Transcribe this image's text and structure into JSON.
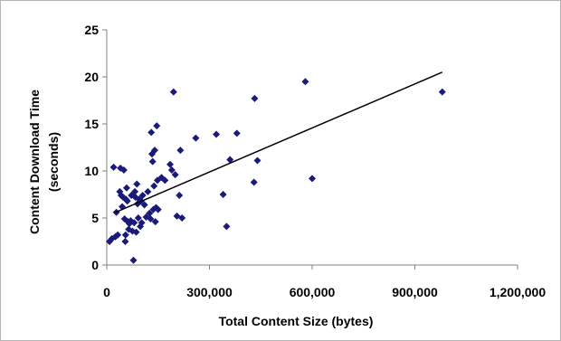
{
  "chart_data": {
    "type": "scatter",
    "xlabel": "Total Content Size (bytes)",
    "ylabel_line1": "Content Download Time",
    "ylabel_line2": "(seconds)",
    "xlim": [
      0,
      1200000
    ],
    "ylim": [
      0,
      25
    ],
    "x_ticks": [
      0,
      300000,
      600000,
      900000,
      1200000
    ],
    "x_tick_labels": [
      "0",
      "300,000",
      "600,000",
      "900,000",
      "1,200,000"
    ],
    "y_ticks": [
      0,
      5,
      10,
      15,
      20,
      25
    ],
    "y_tick_labels": [
      "0",
      "5",
      "10",
      "15",
      "20",
      "25"
    ],
    "grid": false,
    "legend": false,
    "marker": "diamond",
    "colors": {
      "marker": "#1a1a7a",
      "trendline": "#000000",
      "axes": "#808080"
    },
    "series": [
      {
        "points": [
          [
            8000,
            2.5
          ],
          [
            15000,
            2.8
          ],
          [
            20000,
            10.4
          ],
          [
            25000,
            3.0
          ],
          [
            28000,
            5.6
          ],
          [
            32000,
            3.2
          ],
          [
            38000,
            7.8
          ],
          [
            40000,
            10.3
          ],
          [
            42000,
            7.4
          ],
          [
            45000,
            6.2
          ],
          [
            48000,
            7.2
          ],
          [
            50000,
            10.1
          ],
          [
            52000,
            4.9
          ],
          [
            54000,
            2.5
          ],
          [
            55000,
            3.2
          ],
          [
            56000,
            7.0
          ],
          [
            58000,
            8.2
          ],
          [
            60000,
            6.8
          ],
          [
            62000,
            4.6
          ],
          [
            64000,
            3.8
          ],
          [
            66000,
            4.4
          ],
          [
            70000,
            4.7
          ],
          [
            72000,
            7.4
          ],
          [
            75000,
            3.6
          ],
          [
            78000,
            0.5
          ],
          [
            80000,
            4.5
          ],
          [
            82000,
            7.8
          ],
          [
            84000,
            7.2
          ],
          [
            86000,
            3.5
          ],
          [
            88000,
            8.6
          ],
          [
            90000,
            6.5
          ],
          [
            92000,
            5.0
          ],
          [
            95000,
            7.0
          ],
          [
            98000,
            4.1
          ],
          [
            100000,
            6.8
          ],
          [
            102000,
            4.5
          ],
          [
            105000,
            7.4
          ],
          [
            110000,
            6.4
          ],
          [
            115000,
            5.1
          ],
          [
            120000,
            7.8
          ],
          [
            125000,
            5.5
          ],
          [
            128000,
            4.9
          ],
          [
            130000,
            14.1
          ],
          [
            132000,
            11.8
          ],
          [
            134000,
            11.0
          ],
          [
            136000,
            5.9
          ],
          [
            138000,
            8.4
          ],
          [
            140000,
            12.2
          ],
          [
            142000,
            4.6
          ],
          [
            144000,
            6.1
          ],
          [
            146000,
            14.8
          ],
          [
            148000,
            9.0
          ],
          [
            150000,
            5.9
          ],
          [
            160000,
            9.3
          ],
          [
            170000,
            9.0
          ],
          [
            185000,
            10.7
          ],
          [
            190000,
            10.1
          ],
          [
            195000,
            18.4
          ],
          [
            200000,
            9.6
          ],
          [
            205000,
            5.2
          ],
          [
            212000,
            7.4
          ],
          [
            215000,
            12.2
          ],
          [
            220000,
            5.0
          ],
          [
            260000,
            13.5
          ],
          [
            320000,
            13.9
          ],
          [
            340000,
            7.5
          ],
          [
            350000,
            4.1
          ],
          [
            360000,
            11.2
          ],
          [
            380000,
            14.0
          ],
          [
            430000,
            8.8
          ],
          [
            432000,
            17.7
          ],
          [
            440000,
            11.1
          ],
          [
            580000,
            19.5
          ],
          [
            600000,
            9.2
          ],
          [
            980000,
            18.4
          ]
        ]
      }
    ],
    "trendline": {
      "type": "linear",
      "x_range": [
        25000,
        980000
      ],
      "y_values": [
        5.6,
        20.5
      ]
    }
  }
}
